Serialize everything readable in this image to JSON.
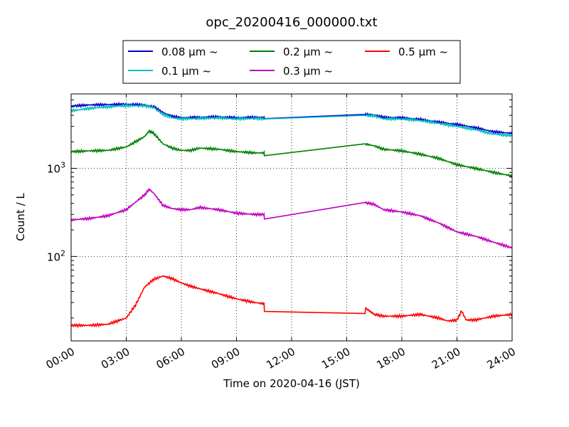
{
  "chart_data": {
    "type": "line",
    "title": "opc_20200416_000000.txt",
    "xlabel": "Time on 2020-04-16 (JST)",
    "ylabel": "Count / L",
    "yscale": "log",
    "xlim": [
      "00:00",
      "24:00"
    ],
    "ylim": [
      11,
      7000
    ],
    "grid": true,
    "legend": "top-center",
    "x_ticks": [
      "00:00",
      "03:00",
      "06:00",
      "09:00",
      "12:00",
      "15:00",
      "18:00",
      "21:00",
      "24:00"
    ],
    "y_ticks": [
      {
        "base": "10",
        "exp": "2",
        "value": 100
      },
      {
        "base": "10",
        "exp": "3",
        "value": 1000
      }
    ],
    "series": [
      {
        "name": "0.08 μm ~",
        "color": "#0000cc",
        "points": [
          [
            "00:00",
            5100
          ],
          [
            "01:00",
            5250
          ],
          [
            "02:00",
            5300
          ],
          [
            "03:00",
            5350
          ],
          [
            "04:00",
            5250
          ],
          [
            "04:30",
            5000
          ],
          [
            "05:00",
            4300
          ],
          [
            "05:30",
            3900
          ],
          [
            "06:00",
            3750
          ],
          [
            "07:00",
            3800
          ],
          [
            "08:00",
            3850
          ],
          [
            "09:00",
            3750
          ],
          [
            "10:00",
            3800
          ],
          [
            "10:30",
            3800
          ],
          [
            "10:31",
            3700
          ],
          [
            "16:00",
            4100
          ],
          [
            "16:30",
            4050
          ],
          [
            "17:00",
            3800
          ],
          [
            "18:00",
            3750
          ],
          [
            "19:00",
            3600
          ],
          [
            "20:00",
            3350
          ],
          [
            "21:00",
            3150
          ],
          [
            "22:00",
            2900
          ],
          [
            "23:00",
            2600
          ],
          [
            "24:00",
            2500
          ]
        ]
      },
      {
        "name": "0.1 μm ~",
        "color": "#00bfbf",
        "points": [
          [
            "00:00",
            4500
          ],
          [
            "01:00",
            4800
          ],
          [
            "02:00",
            5000
          ],
          [
            "03:00",
            5150
          ],
          [
            "04:00",
            5150
          ],
          [
            "04:30",
            4900
          ],
          [
            "05:00",
            4100
          ],
          [
            "05:30",
            3750
          ],
          [
            "06:00",
            3650
          ],
          [
            "07:00",
            3700
          ],
          [
            "08:00",
            3750
          ],
          [
            "09:00",
            3650
          ],
          [
            "10:00",
            3700
          ],
          [
            "10:30",
            3650
          ],
          [
            "10:31",
            3550
          ],
          [
            "16:00",
            4000
          ],
          [
            "16:30",
            3950
          ],
          [
            "17:00",
            3650
          ],
          [
            "18:00",
            3650
          ],
          [
            "19:00",
            3500
          ],
          [
            "20:00",
            3250
          ],
          [
            "21:00",
            3000
          ],
          [
            "22:00",
            2750
          ],
          [
            "23:00",
            2450
          ],
          [
            "24:00",
            2350
          ]
        ]
      },
      {
        "name": "0.2 μm ~",
        "color": "#007f00",
        "points": [
          [
            "00:00",
            1550
          ],
          [
            "01:00",
            1580
          ],
          [
            "02:00",
            1600
          ],
          [
            "03:00",
            1750
          ],
          [
            "04:00",
            2300
          ],
          [
            "04:15",
            2650
          ],
          [
            "04:30",
            2500
          ],
          [
            "05:00",
            1900
          ],
          [
            "05:30",
            1700
          ],
          [
            "06:00",
            1600
          ],
          [
            "06:30",
            1600
          ],
          [
            "07:00",
            1700
          ],
          [
            "08:00",
            1650
          ],
          [
            "09:00",
            1550
          ],
          [
            "10:00",
            1500
          ],
          [
            "10:30",
            1500
          ],
          [
            "10:31",
            1370
          ],
          [
            "16:00",
            1900
          ],
          [
            "16:30",
            1800
          ],
          [
            "17:00",
            1650
          ],
          [
            "18:00",
            1580
          ],
          [
            "19:00",
            1450
          ],
          [
            "20:00",
            1300
          ],
          [
            "21:00",
            1100
          ],
          [
            "22:00",
            1000
          ],
          [
            "23:00",
            900
          ],
          [
            "24:00",
            820
          ]
        ]
      },
      {
        "name": "0.3 μm ~",
        "color": "#bf00bf",
        "points": [
          [
            "00:00",
            260
          ],
          [
            "01:00",
            270
          ],
          [
            "02:00",
            290
          ],
          [
            "03:00",
            340
          ],
          [
            "04:00",
            500
          ],
          [
            "04:15",
            580
          ],
          [
            "04:30",
            520
          ],
          [
            "05:00",
            380
          ],
          [
            "05:30",
            350
          ],
          [
            "06:00",
            340
          ],
          [
            "06:30",
            340
          ],
          [
            "07:00",
            360
          ],
          [
            "08:00",
            340
          ],
          [
            "09:00",
            310
          ],
          [
            "10:00",
            300
          ],
          [
            "10:30",
            300
          ],
          [
            "10:31",
            265
          ],
          [
            "16:00",
            410
          ],
          [
            "16:30",
            390
          ],
          [
            "17:00",
            340
          ],
          [
            "18:00",
            320
          ],
          [
            "19:00",
            290
          ],
          [
            "20:00",
            240
          ],
          [
            "21:00",
            190
          ],
          [
            "22:00",
            170
          ],
          [
            "23:00",
            145
          ],
          [
            "24:00",
            125
          ]
        ]
      },
      {
        "name": "0.5 μm ~",
        "color": "#ff0000",
        "points": [
          [
            "00:00",
            16.5
          ],
          [
            "01:00",
            16.5
          ],
          [
            "02:00",
            17
          ],
          [
            "03:00",
            20
          ],
          [
            "03:30",
            28
          ],
          [
            "04:00",
            45
          ],
          [
            "04:30",
            55
          ],
          [
            "05:00",
            60
          ],
          [
            "05:30",
            56
          ],
          [
            "06:00",
            50
          ],
          [
            "06:30",
            46
          ],
          [
            "07:00",
            43
          ],
          [
            "08:00",
            38
          ],
          [
            "09:00",
            33
          ],
          [
            "10:00",
            30
          ],
          [
            "10:30",
            29
          ],
          [
            "10:31",
            23.5
          ],
          [
            "16:00",
            22.5
          ],
          [
            "16:01",
            26
          ],
          [
            "16:30",
            22
          ],
          [
            "17:00",
            21
          ],
          [
            "18:00",
            21
          ],
          [
            "19:00",
            22
          ],
          [
            "20:00",
            20
          ],
          [
            "20:30",
            18.5
          ],
          [
            "21:00",
            19
          ],
          [
            "21:15",
            24
          ],
          [
            "21:30",
            19
          ],
          [
            "22:00",
            19
          ],
          [
            "23:00",
            21
          ],
          [
            "24:00",
            22
          ]
        ]
      }
    ]
  }
}
